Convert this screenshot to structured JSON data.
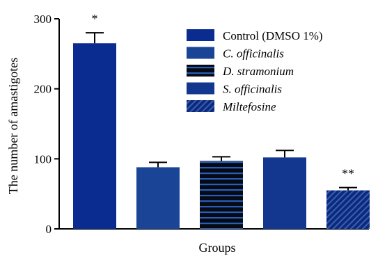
{
  "colors": {
    "control": "#0a2b8f",
    "c_officinalis": "#1a4596",
    "d_stramonium_base": "#050a14",
    "d_stramonium_stripe": "#2a5db8",
    "s_officinalis": "#13368f",
    "miltefosine_base": "#0b2a78",
    "miltefosine_hatch": "#3a5dbb",
    "axis": "#000000"
  },
  "chart_data": {
    "type": "bar",
    "xlabel": "Groups",
    "ylabel": "The number of amastigotes",
    "ylim": [
      0,
      300
    ],
    "yticks": [
      0,
      100,
      200,
      300
    ],
    "grid": false,
    "legend_position": "top-right",
    "series": [
      {
        "name": "Control (DMSO 1%)",
        "italic": false,
        "value": 265,
        "error": 15,
        "annotation": "*",
        "fill": "solid",
        "color_key": "control"
      },
      {
        "name": "C. officinalis",
        "italic": true,
        "value": 88,
        "error": 7,
        "annotation": "",
        "fill": "solid",
        "color_key": "c_officinalis"
      },
      {
        "name": "D. stramonium",
        "italic": true,
        "value": 97,
        "error": 6,
        "annotation": "",
        "fill": "stripes",
        "color_key": "d_stramonium_base"
      },
      {
        "name": "S. officinalis",
        "italic": true,
        "value": 102,
        "error": 10,
        "annotation": "",
        "fill": "solid",
        "color_key": "s_officinalis"
      },
      {
        "name": "Miltefosine",
        "italic": true,
        "value": 55,
        "error": 4,
        "annotation": "**",
        "fill": "hatch",
        "color_key": "miltefosine_base"
      }
    ]
  }
}
